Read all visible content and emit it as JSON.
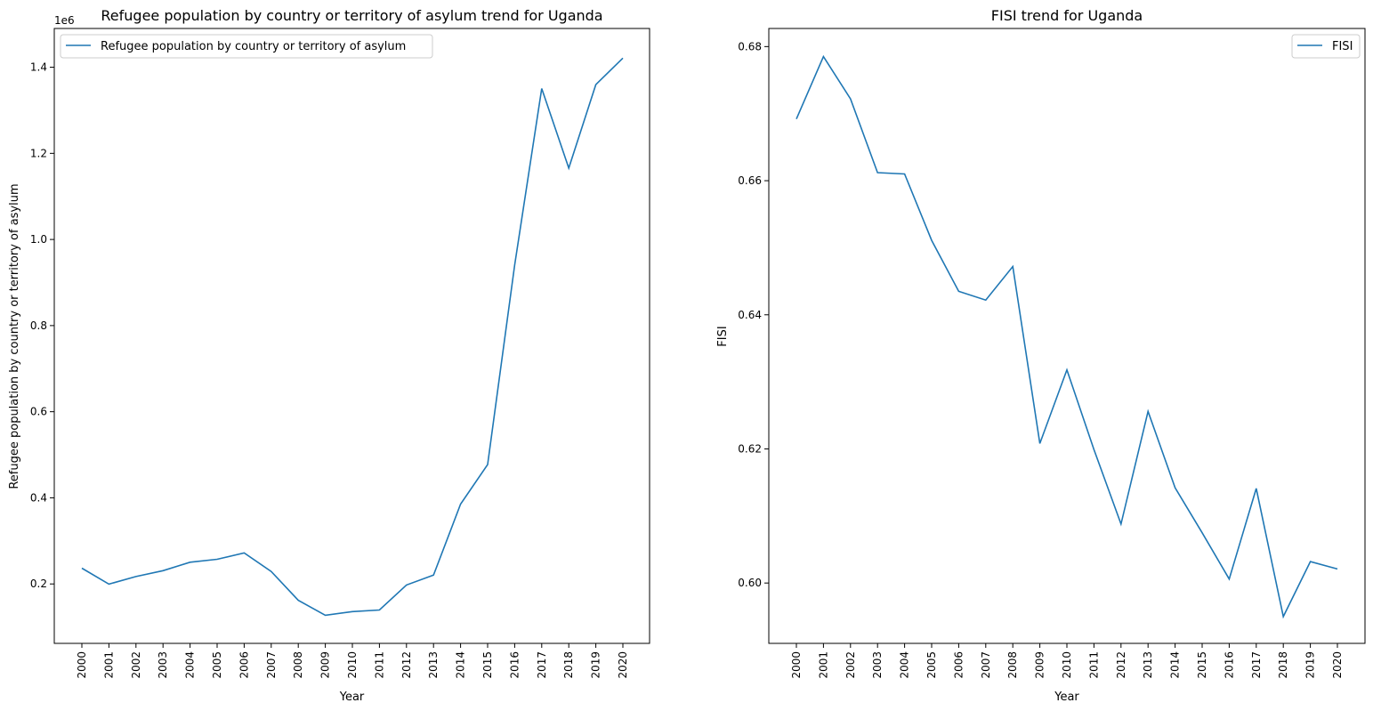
{
  "chart_data": [
    {
      "type": "line",
      "title": "Refugee population by country or territory of asylum trend for Uganda",
      "xlabel": "Year",
      "ylabel": "Refugee population by country or territory of asylum",
      "y_offset_text": "1e6",
      "x": [
        "2000",
        "2001",
        "2002",
        "2003",
        "2004",
        "2005",
        "2006",
        "2007",
        "2008",
        "2009",
        "2010",
        "2011",
        "2012",
        "2013",
        "2014",
        "2015",
        "2016",
        "2017",
        "2018",
        "2019",
        "2020"
      ],
      "y_ticks": [
        0.2,
        0.4,
        0.6,
        0.8,
        1.0,
        1.2,
        1.4
      ],
      "y_tick_labels": [
        "0.2",
        "0.4",
        "0.6",
        "0.8",
        "1.0",
        "1.2",
        "1.4"
      ],
      "ylim": [
        62000,
        1490000
      ],
      "series": [
        {
          "name": "Refugee population by country or territory of asylum",
          "color": "#1f77b4",
          "values": [
            236600,
            199700,
            217300,
            230900,
            250500,
            257300,
            272000,
            228900,
            162100,
            127300,
            135800,
            139400,
            197600,
            220600,
            385500,
            477200,
            940800,
            1350500,
            1165700,
            1359500,
            1421100
          ]
        }
      ],
      "legend": "upper-left",
      "grid": false
    },
    {
      "type": "line",
      "title": "FISI trend for Uganda",
      "xlabel": "Year",
      "ylabel": "FISI",
      "x": [
        "2000",
        "2001",
        "2002",
        "2003",
        "2004",
        "2005",
        "2006",
        "2007",
        "2008",
        "2009",
        "2010",
        "2011",
        "2012",
        "2013",
        "2014",
        "2015",
        "2016",
        "2017",
        "2018",
        "2019",
        "2020"
      ],
      "y_ticks": [
        0.6,
        0.62,
        0.64,
        0.66,
        0.68
      ],
      "y_tick_labels": [
        "0.60",
        "0.62",
        "0.64",
        "0.66",
        "0.68"
      ],
      "ylim": [
        0.591,
        0.6827
      ],
      "series": [
        {
          "name": "FISI",
          "color": "#1f77b4",
          "values": [
            0.6692,
            0.6785,
            0.6722,
            0.6612,
            0.661,
            0.6511,
            0.6435,
            0.6422,
            0.6472,
            0.6208,
            0.6318,
            0.6199,
            0.6088,
            0.6256,
            0.6142,
            0.6075,
            0.6006,
            0.6141,
            0.595,
            0.6032,
            0.6021
          ]
        }
      ],
      "legend": "upper-right",
      "grid": false
    }
  ]
}
